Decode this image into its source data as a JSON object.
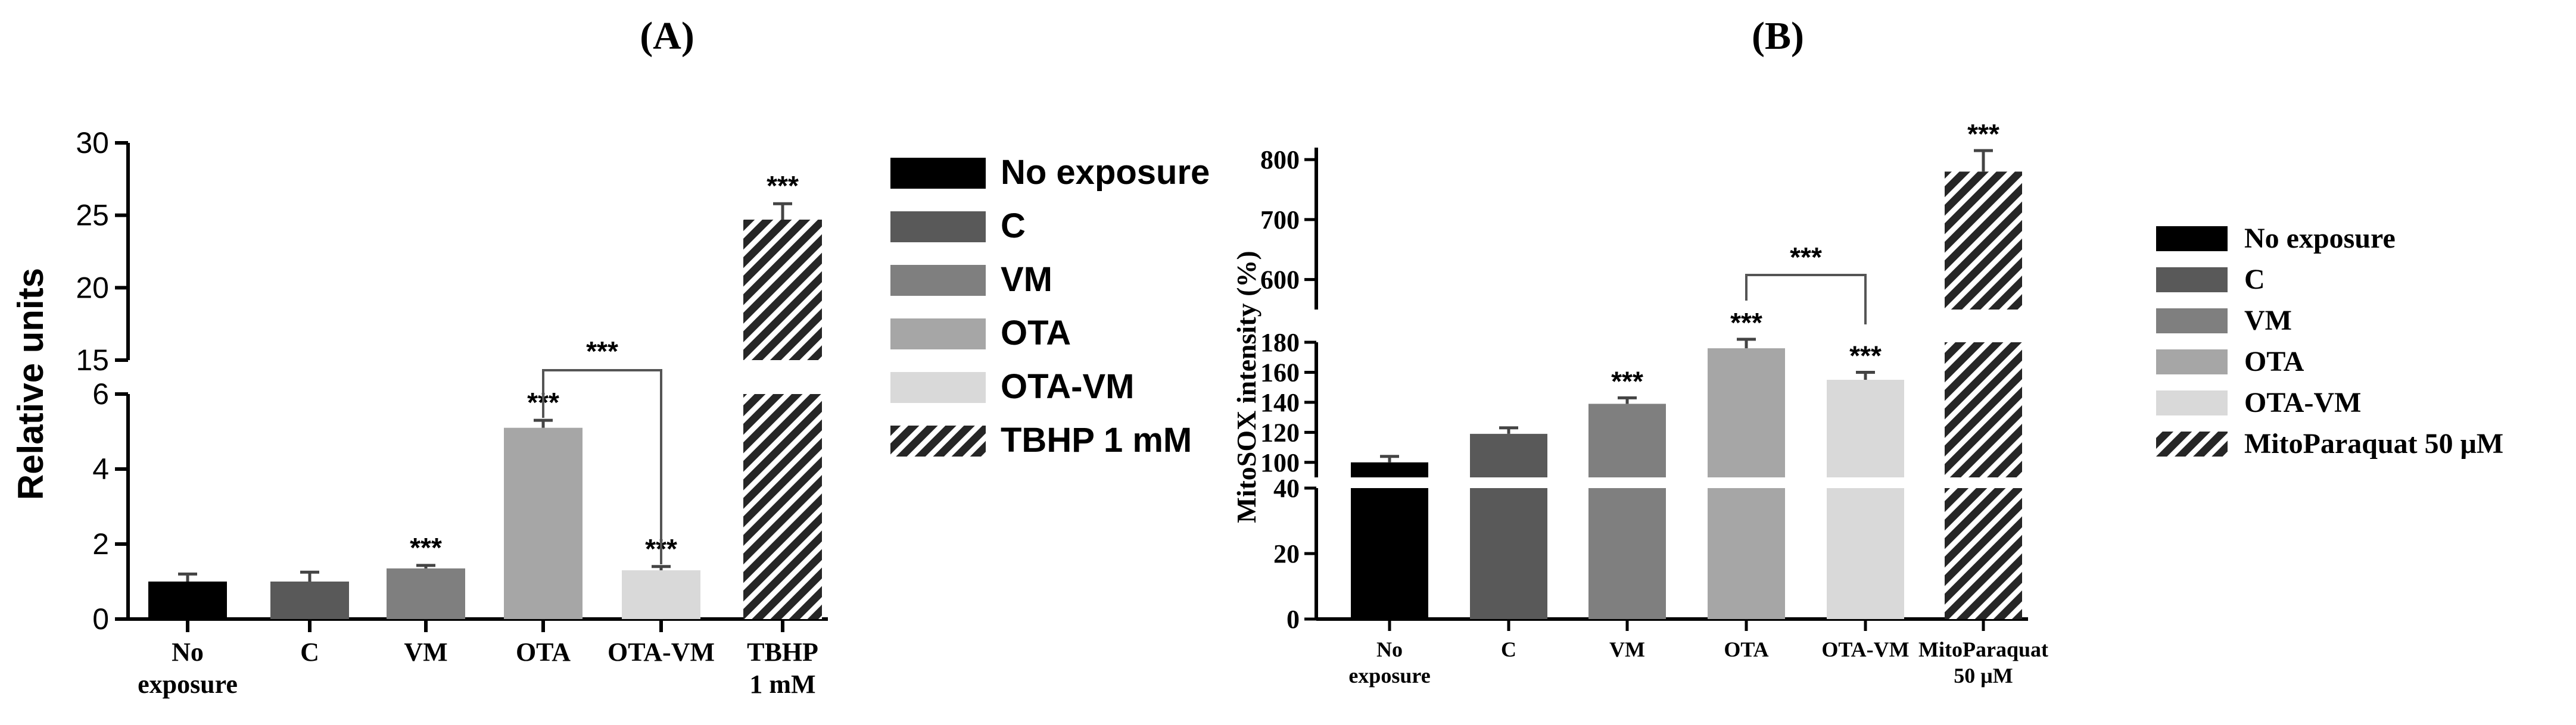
{
  "colors": {
    "no_exposure": "#000000",
    "c": "#595959",
    "vm": "#7f7f7f",
    "ota": "#a6a6a6",
    "ota_vm": "#d9d9d9",
    "hatch": "#262626"
  },
  "chart_data": [
    {
      "type": "bar",
      "panel_label": "(A)",
      "ylabel": "Relative units",
      "categories": [
        "No exposure",
        "C",
        "VM",
        "OTA",
        "OTA-VM",
        "TBHP 1 mM"
      ],
      "x_tick_labels": [
        [
          "No",
          "exposure"
        ],
        [
          "C"
        ],
        [
          "VM"
        ],
        [
          "OTA"
        ],
        [
          "OTA-VM"
        ],
        [
          "TBHP",
          "1 mM"
        ]
      ],
      "values": [
        1.0,
        1.0,
        1.35,
        5.1,
        1.3,
        24.7
      ],
      "errors": [
        0.2,
        0.25,
        0.08,
        0.2,
        0.1,
        1.1
      ],
      "significance": [
        "",
        "",
        "***",
        "***",
        "***",
        "***"
      ],
      "comparison": {
        "from": "OTA",
        "to": "OTA-VM",
        "label": "***"
      },
      "y_axis_broken": true,
      "y_lower_range": [
        0,
        6
      ],
      "y_lower_ticks": [
        "0",
        "2",
        "4",
        "6"
      ],
      "y_upper_range": [
        15,
        30
      ],
      "y_upper_ticks": [
        "15",
        "20",
        "25",
        "30"
      ],
      "legend": [
        "No exposure",
        "C",
        "VM",
        "OTA",
        "OTA-VM",
        "TBHP 1 mM"
      ],
      "legend_position": "right",
      "grid": false
    },
    {
      "type": "bar",
      "panel_label": "(B)",
      "ylabel": "MitoSOX intensity (%)",
      "categories": [
        "No exposure",
        "C",
        "VM",
        "OTA",
        "OTA-VM",
        "MitoParaquat 50 μM"
      ],
      "x_tick_labels": [
        [
          "No",
          "exposure"
        ],
        [
          "C"
        ],
        [
          "VM"
        ],
        [
          "OTA"
        ],
        [
          "OTA-VM"
        ],
        [
          "MitoParaquat",
          "50 μM"
        ]
      ],
      "values": [
        100,
        119,
        139,
        176,
        155,
        780
      ],
      "errors": [
        4,
        4,
        4,
        6,
        5,
        35
      ],
      "significance": [
        "",
        "",
        "***",
        "***",
        "***",
        "***"
      ],
      "comparison": {
        "from": "OTA",
        "to": "OTA-VM",
        "label": "***"
      },
      "y_axis_broken": true,
      "y_lower_range": [
        0,
        40
      ],
      "y_lower_ticks": [
        "0",
        "20",
        "40"
      ],
      "y_middle_range": [
        90,
        180
      ],
      "y_middle_ticks": [
        "100",
        "120",
        "140",
        "160",
        "180"
      ],
      "y_upper_range": [
        550,
        820
      ],
      "y_upper_ticks": [
        "600",
        "700",
        "800"
      ],
      "legend": [
        "No exposure",
        "C",
        "VM",
        "OTA",
        "OTA-VM",
        "MitoParaquat 50 μM"
      ],
      "legend_position": "right",
      "grid": false
    }
  ]
}
